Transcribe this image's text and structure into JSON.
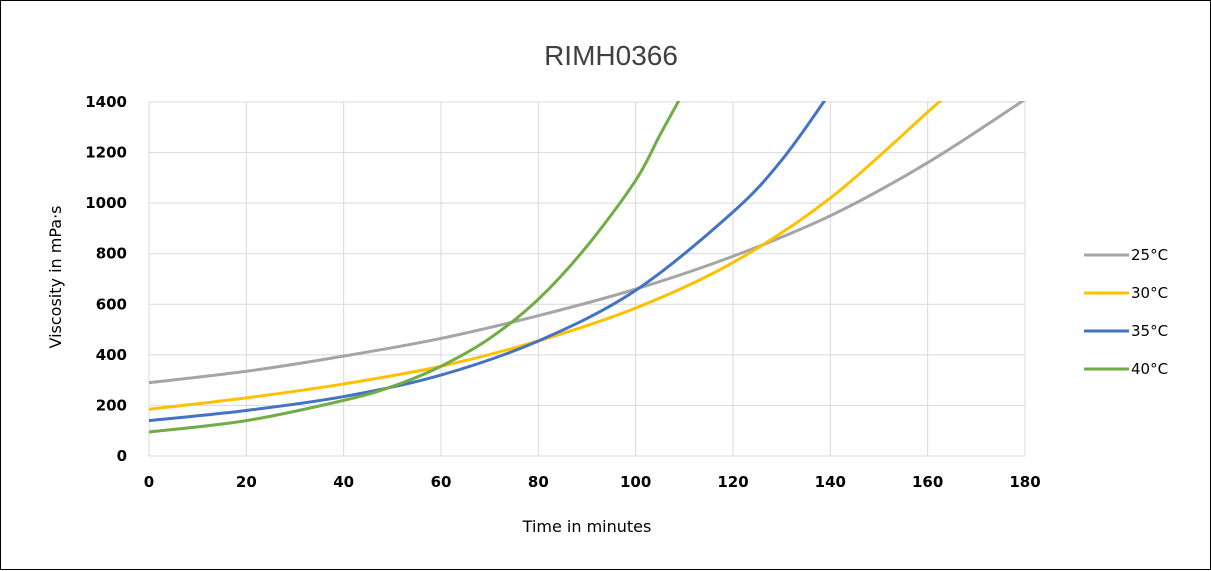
{
  "chart_data": {
    "type": "line",
    "title": "RIMH0366",
    "xlabel": "Time in minutes",
    "ylabel": "Viscosity in mPa·s",
    "xlim": [
      0,
      180
    ],
    "ylim": [
      0,
      1400
    ],
    "x_ticks": [
      "0",
      "20",
      "40",
      "60",
      "80",
      "100",
      "120",
      "140",
      "160",
      "180"
    ],
    "y_ticks": [
      "0",
      "200",
      "400",
      "600",
      "800",
      "1000",
      "1200",
      "1400"
    ],
    "grid": true,
    "legend_position": "right",
    "series": [
      {
        "name": "25°C",
        "color": "#a5a5a5",
        "points": [
          [
            0,
            290
          ],
          [
            20,
            335
          ],
          [
            40,
            395
          ],
          [
            60,
            465
          ],
          [
            80,
            555
          ],
          [
            100,
            660
          ],
          [
            120,
            790
          ],
          [
            140,
            950
          ],
          [
            160,
            1160
          ],
          [
            180,
            1410
          ]
        ]
      },
      {
        "name": "30°C",
        "color": "#ffc000",
        "points": [
          [
            0,
            185
          ],
          [
            20,
            230
          ],
          [
            40,
            285
          ],
          [
            60,
            355
          ],
          [
            80,
            455
          ],
          [
            100,
            585
          ],
          [
            120,
            765
          ],
          [
            140,
            1020
          ],
          [
            160,
            1360
          ],
          [
            163,
            1410
          ]
        ]
      },
      {
        "name": "35°C",
        "color": "#4472c4",
        "points": [
          [
            0,
            140
          ],
          [
            20,
            180
          ],
          [
            40,
            235
          ],
          [
            60,
            320
          ],
          [
            80,
            455
          ],
          [
            100,
            655
          ],
          [
            120,
            965
          ],
          [
            130,
            1170
          ],
          [
            139,
            1410
          ]
        ]
      },
      {
        "name": "40°C",
        "color": "#70ad47",
        "points": [
          [
            0,
            95
          ],
          [
            20,
            140
          ],
          [
            40,
            220
          ],
          [
            50,
            275
          ],
          [
            60,
            355
          ],
          [
            70,
            465
          ],
          [
            80,
            620
          ],
          [
            90,
            830
          ],
          [
            100,
            1090
          ],
          [
            105,
            1270
          ],
          [
            109,
            1410
          ]
        ]
      }
    ]
  }
}
